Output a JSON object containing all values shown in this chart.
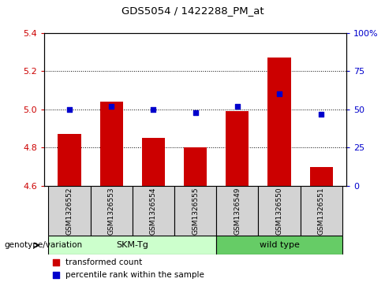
{
  "title": "GDS5054 / 1422288_PM_at",
  "samples": [
    "GSM1326552",
    "GSM1326553",
    "GSM1326554",
    "GSM1326555",
    "GSM1326549",
    "GSM1326550",
    "GSM1326551"
  ],
  "bar_values": [
    4.87,
    5.04,
    4.85,
    4.8,
    4.99,
    5.27,
    4.7
  ],
  "dot_percentiles": [
    50,
    52,
    50,
    48,
    52,
    60,
    47
  ],
  "bar_base": 4.6,
  "ylim_left": [
    4.6,
    5.4
  ],
  "ylim_right": [
    0,
    100
  ],
  "yticks_left": [
    4.6,
    4.8,
    5.0,
    5.2,
    5.4
  ],
  "yticks_right": [
    0,
    25,
    50,
    75,
    100
  ],
  "ytick_labels_right": [
    "0",
    "25",
    "50",
    "75",
    "100%"
  ],
  "bar_color": "#CC0000",
  "dot_color": "#0000CC",
  "skm_indices": [
    0,
    1,
    2,
    3
  ],
  "wt_indices": [
    4,
    5,
    6
  ],
  "skm_label": "SKM-Tg",
  "wt_label": "wild type",
  "skm_color": "#CCFFCC",
  "wt_color": "#66CC66",
  "group_label": "genotype/variation",
  "legend_bar_label": "transformed count",
  "legend_dot_label": "percentile rank within the sample",
  "tick_color_left": "#CC0000",
  "tick_color_right": "#0000CC",
  "cell_bg": "#D3D3D3"
}
